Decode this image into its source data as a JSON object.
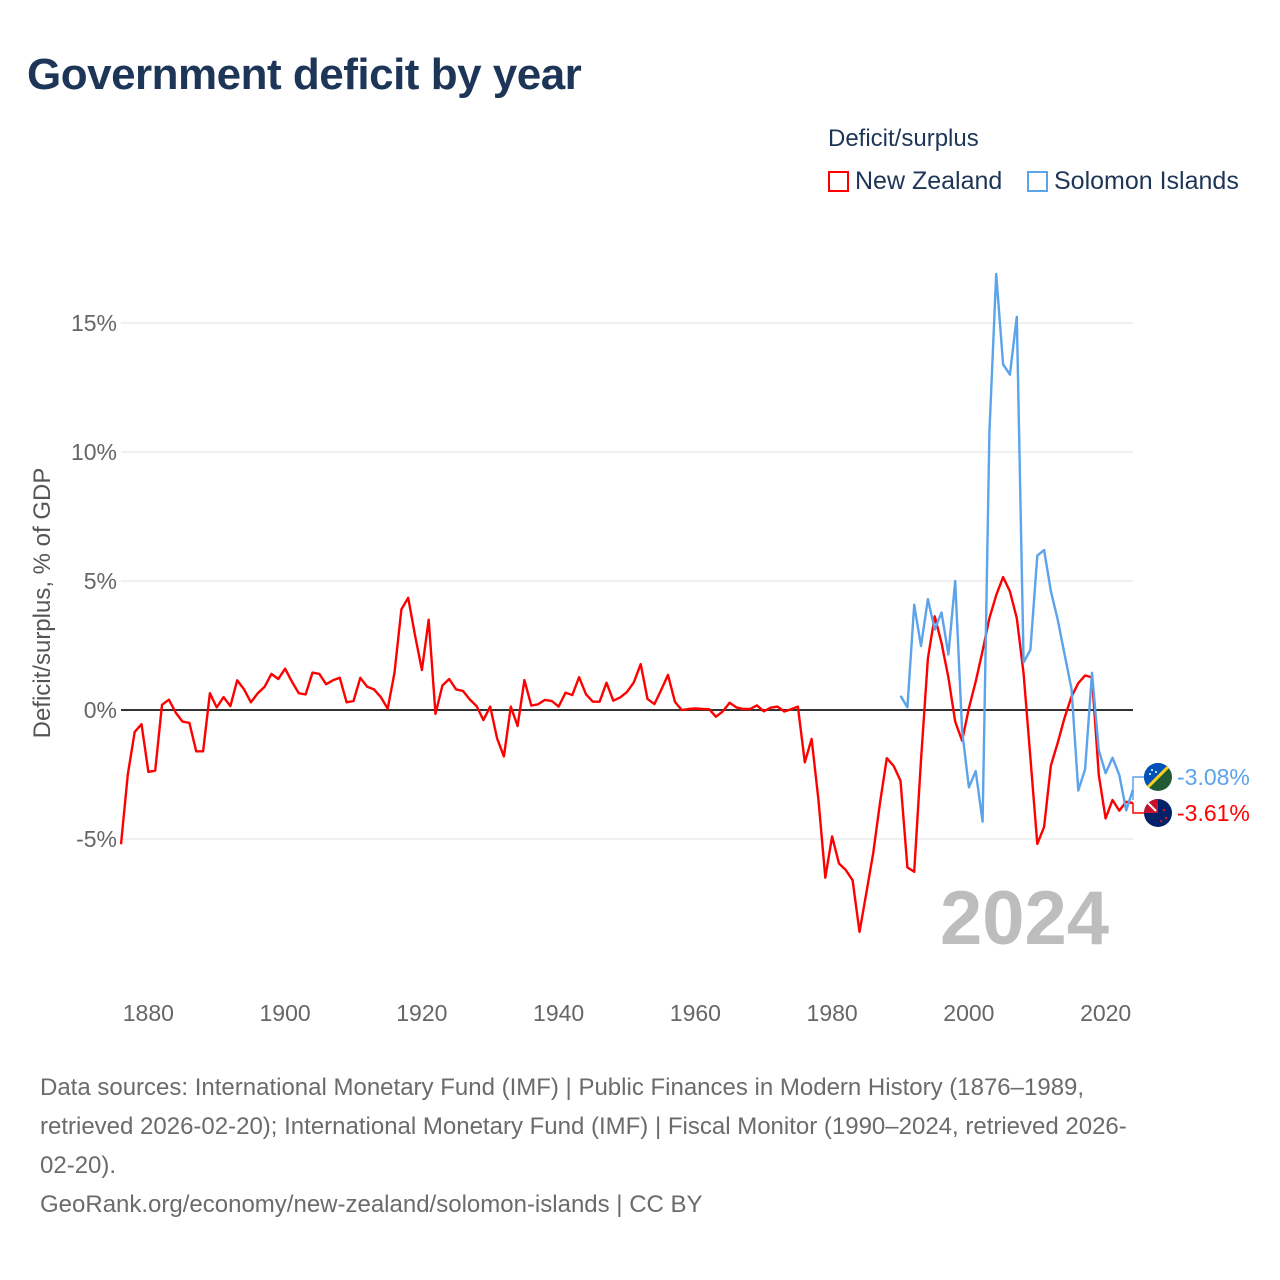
{
  "title": "Government deficit by year",
  "legend": {
    "title": "Deficit/surplus",
    "items": [
      {
        "label": "New Zealand",
        "color": "#ff0000"
      },
      {
        "label": "Solomon Islands",
        "color": "#5ba3eb"
      }
    ]
  },
  "current_year": "2024",
  "end_labels": {
    "solomon": "-3.08%",
    "nz": "-3.61%"
  },
  "footer": {
    "sources_lines": [
      "Data sources: International Monetary Fund (IMF) | Public Finances in Modern History (1876–1989,",
      "retrieved 2026-02-20); International Monetary Fund (IMF) | Fiscal Monitor (1990–2024, retrieved 2026-",
      "02-20)."
    ],
    "link": "GeoRank.org/economy/new-zealand/solomon-islands | CC BY"
  },
  "chart_data": {
    "type": "line",
    "title": "Government deficit by year",
    "xlabel": "",
    "ylabel": "Deficit/surplus, % of GDP",
    "xlim": [
      1876,
      2024
    ],
    "ylim": [
      -10,
      17.5
    ],
    "xticks": [
      1880,
      1900,
      1920,
      1940,
      1960,
      1980,
      2000,
      2020
    ],
    "yticks": [
      -5,
      0,
      5,
      10,
      15
    ],
    "ytick_labels": [
      "-5%",
      "0%",
      "5%",
      "10%",
      "15%"
    ],
    "grid": true,
    "legend_position": "top-right",
    "series": [
      {
        "name": "New Zealand",
        "color": "#ff0000",
        "start_year": 1876,
        "values": [
          -5.2,
          -2.5,
          -0.85,
          -0.55,
          -2.4,
          -2.35,
          0.2,
          0.4,
          -0.1,
          -0.45,
          -0.5,
          -1.6,
          -1.6,
          0.65,
          0.1,
          0.5,
          0.15,
          1.15,
          0.8,
          0.3,
          0.65,
          0.9,
          1.4,
          1.2,
          1.6,
          1.1,
          0.65,
          0.6,
          1.45,
          1.4,
          1.0,
          1.15,
          1.25,
          0.3,
          0.35,
          1.25,
          0.9,
          0.8,
          0.5,
          0.05,
          1.45,
          3.9,
          4.35,
          2.9,
          1.55,
          3.5,
          -0.15,
          0.95,
          1.2,
          0.8,
          0.74,
          0.41,
          0.15,
          -0.39,
          0.13,
          -1.1,
          -1.8,
          0.13,
          -0.62,
          1.16,
          0.17,
          0.22,
          0.39,
          0.35,
          0.13,
          0.67,
          0.58,
          1.27,
          0.61,
          0.32,
          0.32,
          1.06,
          0.36,
          0.49,
          0.7,
          1.07,
          1.78,
          0.43,
          0.23,
          0.78,
          1.36,
          0.32,
          0.0,
          0.04,
          0.06,
          0.04,
          0.03,
          -0.26,
          -0.06,
          0.28,
          0.1,
          0.04,
          0.04,
          0.18,
          -0.05,
          0.09,
          0.13,
          -0.06,
          0.03,
          0.13,
          -2.03,
          -1.12,
          -3.5,
          -6.5,
          -4.9,
          -5.95,
          -6.2,
          -6.6,
          -8.6,
          -7.1,
          -5.55,
          -3.6,
          -1.87,
          -2.17,
          -2.74,
          -6.1,
          -6.27,
          -1.94,
          2.0,
          3.63,
          2.6,
          1.26,
          -0.45,
          -1.19,
          0.07,
          1.1,
          2.3,
          3.56,
          4.45,
          5.15,
          4.6,
          3.56,
          1.41,
          -1.85,
          -5.19,
          -4.53,
          -2.15,
          -1.26,
          -0.3,
          0.52,
          1.04,
          1.34,
          1.26,
          -2.52,
          -4.2,
          -3.49,
          -3.9,
          -3.56,
          -3.61
        ]
      },
      {
        "name": "Solomon Islands",
        "color": "#5ba3eb",
        "start_year": 1990,
        "values": [
          0.55,
          0.1,
          4.08,
          2.48,
          4.3,
          3.12,
          3.78,
          2.15,
          5.0,
          -0.8,
          -3.0,
          -2.37,
          -4.33,
          10.76,
          16.9,
          13.4,
          13.0,
          15.24,
          1.85,
          2.33,
          5.98,
          6.2,
          4.6,
          3.49,
          2.15,
          0.82,
          -3.12,
          -2.3,
          1.44,
          -1.56,
          -2.45,
          -1.85,
          -2.52,
          -3.89,
          -3.08
        ]
      }
    ]
  }
}
